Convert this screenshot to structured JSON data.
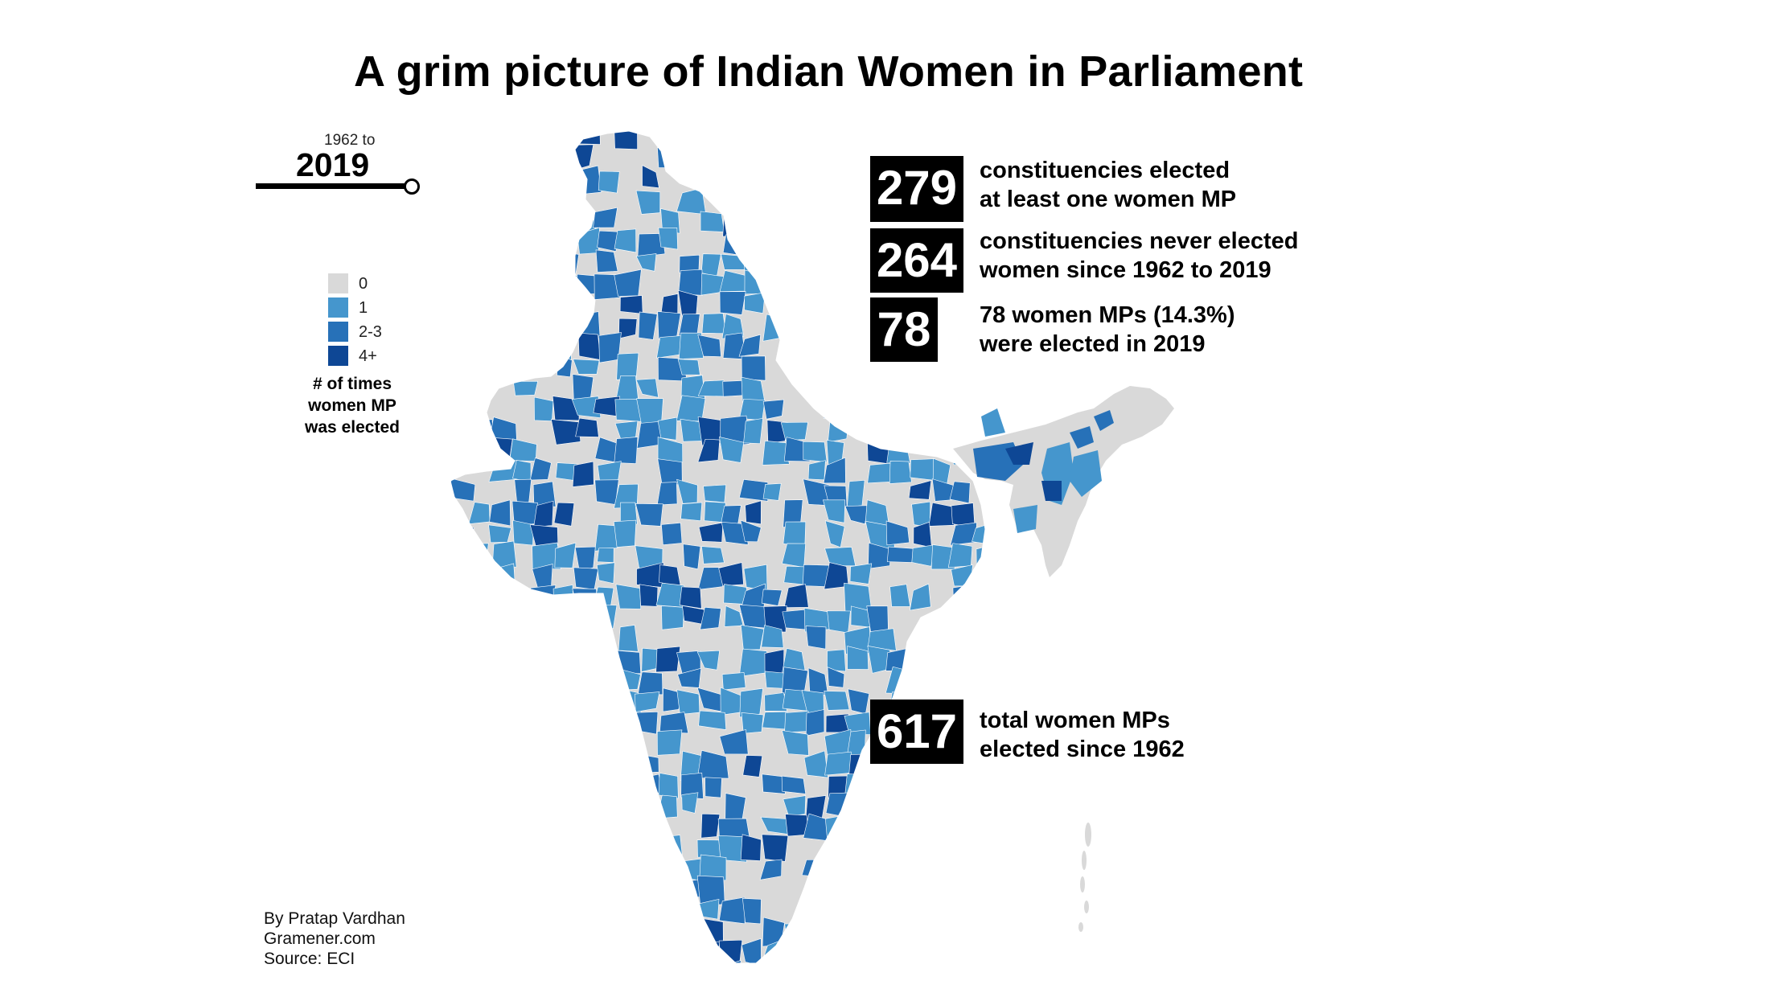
{
  "title": "A grim picture of Indian Women in Parliament",
  "timeline": {
    "range_prefix": "1962 to",
    "selected_year": "2019",
    "slider_position": 1.0
  },
  "legend": {
    "items": [
      {
        "label": "0",
        "color": "#d9d9d9"
      },
      {
        "label": "1",
        "color": "#4596cd"
      },
      {
        "label": "2-3",
        "color": "#2771b8"
      },
      {
        "label": "4+",
        "color": "#0e4795"
      }
    ],
    "caption_lines": [
      "# of times",
      "women MP",
      "was elected"
    ]
  },
  "stats": [
    {
      "value": "279",
      "lines": [
        "constituencies elected",
        "at least one women MP"
      ]
    },
    {
      "value": "264",
      "lines": [
        "constituencies never elected",
        "women since 1962 to 2019"
      ]
    },
    {
      "value": "78",
      "lines": [
        "78 women MPs (14.3%)",
        "were elected in 2019"
      ]
    },
    {
      "value": "617",
      "lines": [
        "total women MPs",
        "elected since 1962"
      ]
    }
  ],
  "credits": [
    "By Pratap Vardhan",
    "Gramener.com",
    "Source: ECI"
  ],
  "map": {
    "region": "India",
    "unit": "parliamentary constituencies",
    "colors": {
      "0": "#d9d9d9",
      "1": "#4596cd",
      "2-3": "#2771b8",
      "4+": "#0e4795"
    }
  }
}
